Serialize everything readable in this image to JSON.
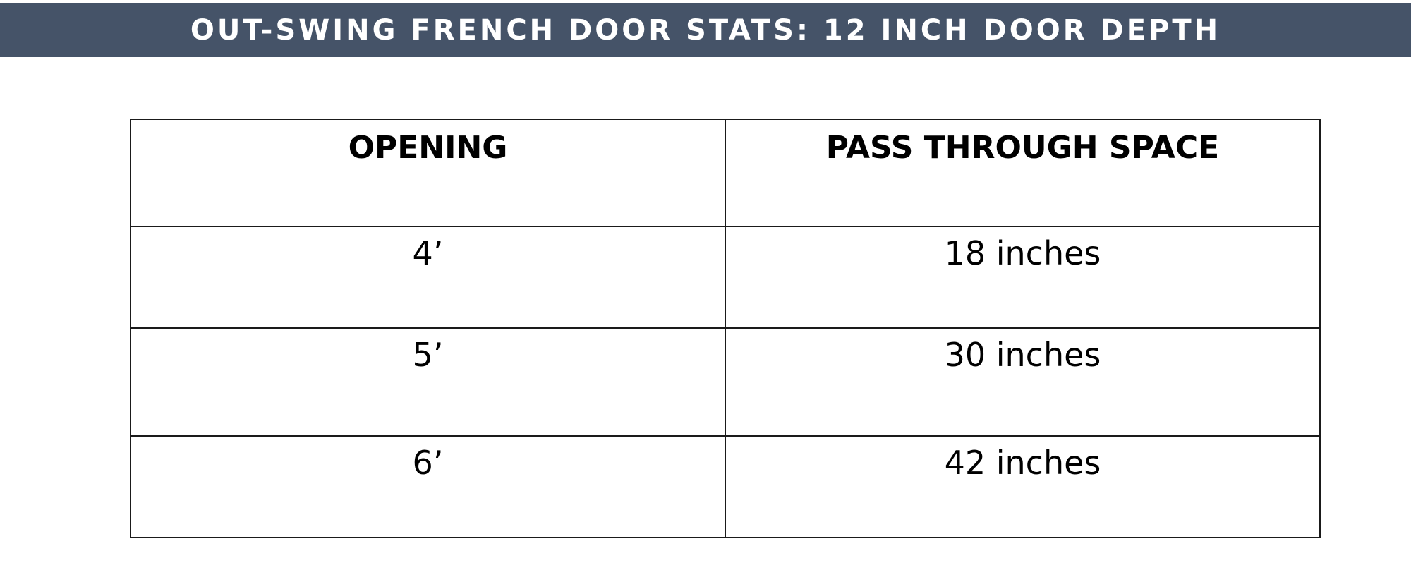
{
  "header": {
    "title": "OUT-SWING FRENCH DOOR STATS: 12 INCH DOOR DEPTH"
  },
  "table": {
    "columns": [
      "OPENING",
      "PASS THROUGH SPACE"
    ],
    "rows": [
      {
        "opening": "4’",
        "pass_through": "18 inches"
      },
      {
        "opening": "5’",
        "pass_through": "30 inches"
      },
      {
        "opening": "6’",
        "pass_through": "42 inches"
      }
    ]
  },
  "colors": {
    "title_bar": "#455368",
    "title_text": "#ffffff",
    "table_border": "#1a1a1a"
  }
}
